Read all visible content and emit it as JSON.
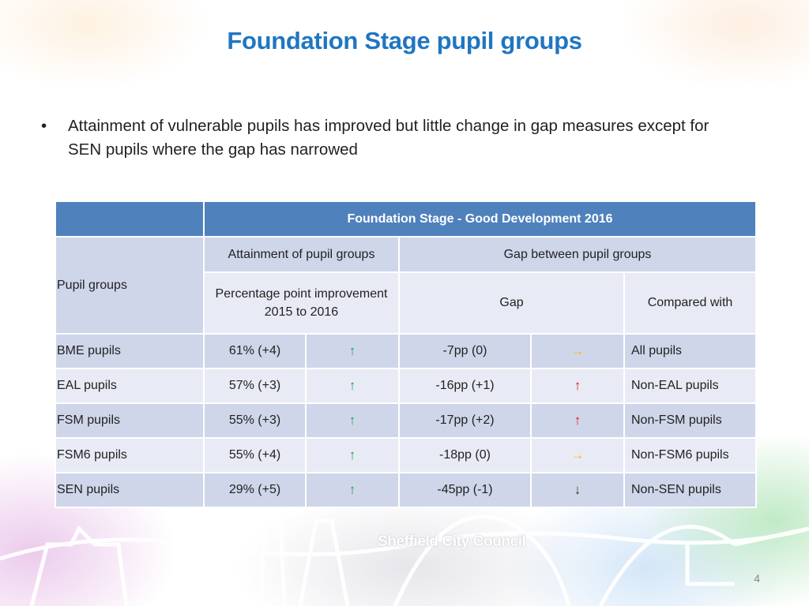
{
  "slide": {
    "title": "Foundation Stage pupil groups",
    "bullet": "Attainment of vulnerable pupils has improved but little change in gap measures except for SEN pupils where the gap has narrowed",
    "page_number": "4",
    "logo_text": "Sheffield City Council"
  },
  "table": {
    "main_header": "Foundation Stage - Good Development 2016",
    "row_header": "Pupil groups",
    "attainment_header": "Attainment of pupil groups",
    "gap_header": "Gap between pupil groups",
    "improvement_header": "Percentage point improvement 2015 to 2016",
    "gap_col": "Gap",
    "compared_col": "Compared with",
    "rows": [
      {
        "group": "BME pupils",
        "attainment": "61% (+4)",
        "att_arrow": "↑",
        "gap": "-7pp (0)",
        "gap_arrow": "→",
        "compared": "All pupils"
      },
      {
        "group": "EAL pupils",
        "attainment": "57% (+3)",
        "att_arrow": "↑",
        "gap": "-16pp (+1)",
        "gap_arrow": "↑",
        "compared": "Non-EAL pupils"
      },
      {
        "group": "FSM pupils",
        "attainment": "55% (+3)",
        "att_arrow": "↑",
        "gap": "-17pp (+2)",
        "gap_arrow": "↑",
        "compared": "Non-FSM pupils"
      },
      {
        "group": "FSM6 pupils",
        "attainment": "55% (+4)",
        "att_arrow": "↑",
        "gap": "-18pp (0)",
        "gap_arrow": "→",
        "compared": "Non-FSM6 pupils"
      },
      {
        "group": "SEN pupils",
        "attainment": "29% (+5)",
        "att_arrow": "↑",
        "gap": "-45pp (-1)",
        "gap_arrow": "↓",
        "compared": "Non-SEN pupils"
      }
    ]
  },
  "colors": {
    "title": "#1f76c1",
    "header_bg": "#4f81bd",
    "row_dark": "#cfd6ea",
    "row_light": "#e8ebf5",
    "arrow_green": "#1aa84a",
    "arrow_red": "#e0141e",
    "arrow_amber": "#f5b800",
    "arrow_dark": "#1c4a1c"
  },
  "icons": {
    "att_arrow_colors": [
      "arrow_green",
      "arrow_green",
      "arrow_green",
      "arrow_green",
      "arrow_green"
    ],
    "gap_arrow_colors": [
      "arrow_amber",
      "arrow_red",
      "arrow_red",
      "arrow_amber",
      "arrow_dark"
    ]
  }
}
